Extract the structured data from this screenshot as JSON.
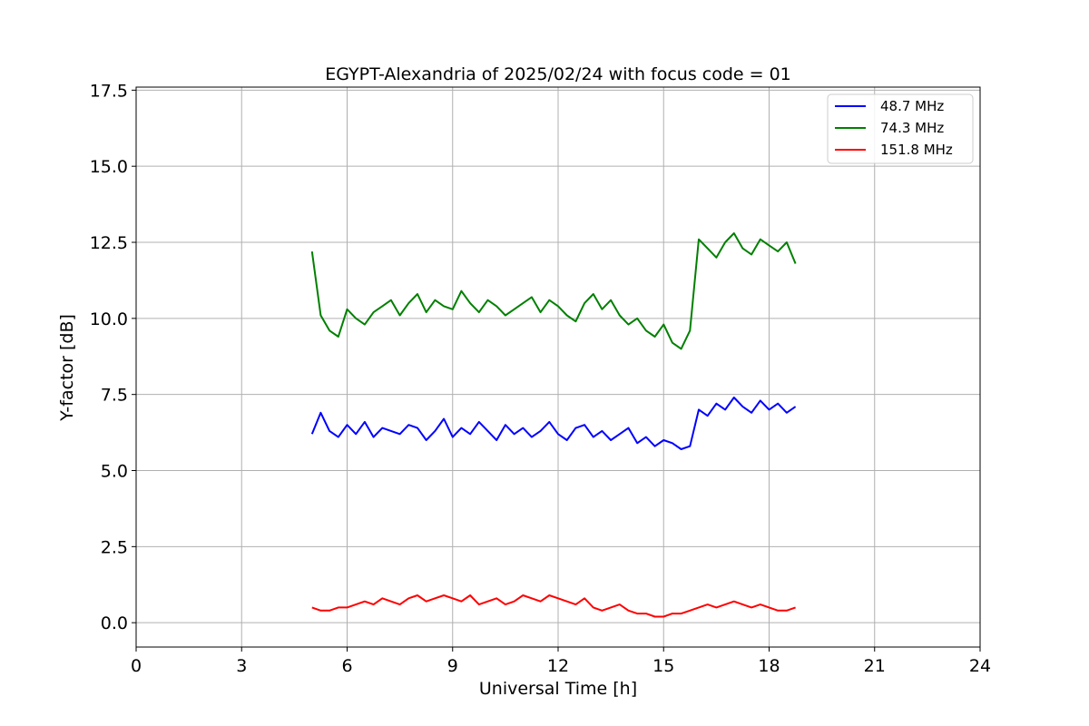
{
  "chart_data": {
    "type": "line",
    "title": "EGYPT-Alexandria of 2025/02/24 with focus code = 01",
    "xlabel": "Universal Time [h]",
    "ylabel": "Y-factor [dB]",
    "xlim": [
      0,
      24
    ],
    "ylim": [
      -0.8,
      17.6
    ],
    "xticks": [
      0,
      3,
      6,
      9,
      12,
      15,
      18,
      21,
      24
    ],
    "xtick_labels": [
      "0",
      "3",
      "6",
      "9",
      "12",
      "15",
      "18",
      "21",
      "24"
    ],
    "yticks": [
      0,
      2.5,
      5,
      7.5,
      10,
      12.5,
      15,
      17.5
    ],
    "ytick_labels": [
      "0.0",
      "2.5",
      "5.0",
      "7.5",
      "10.0",
      "12.5",
      "15.0",
      "17.5"
    ],
    "grid": true,
    "legend_position": "top-right",
    "x": [
      5.0,
      5.25,
      5.5,
      5.75,
      6.0,
      6.25,
      6.5,
      6.75,
      7.0,
      7.25,
      7.5,
      7.75,
      8.0,
      8.25,
      8.5,
      8.75,
      9.0,
      9.25,
      9.5,
      9.75,
      10.0,
      10.25,
      10.5,
      10.75,
      11.0,
      11.25,
      11.5,
      11.75,
      12.0,
      12.25,
      12.5,
      12.75,
      13.0,
      13.25,
      13.5,
      13.75,
      14.0,
      14.25,
      14.5,
      14.75,
      15.0,
      15.25,
      15.5,
      15.75,
      16.0,
      16.25,
      16.5,
      16.75,
      17.0,
      17.25,
      17.5,
      17.75,
      18.0,
      18.25,
      18.5,
      18.75
    ],
    "series": [
      {
        "name": " 48.7 MHz",
        "color": "#0000ff",
        "values": [
          6.2,
          6.9,
          6.3,
          6.1,
          6.5,
          6.2,
          6.6,
          6.1,
          6.4,
          6.3,
          6.2,
          6.5,
          6.4,
          6.0,
          6.3,
          6.7,
          6.1,
          6.4,
          6.2,
          6.6,
          6.3,
          6.0,
          6.5,
          6.2,
          6.4,
          6.1,
          6.3,
          6.6,
          6.2,
          6.0,
          6.4,
          6.5,
          6.1,
          6.3,
          6.0,
          6.2,
          6.4,
          5.9,
          6.1,
          5.8,
          6.0,
          5.9,
          5.7,
          5.8,
          7.0,
          6.8,
          7.2,
          7.0,
          7.4,
          7.1,
          6.9,
          7.3,
          7.0,
          7.2,
          6.9,
          7.1
        ]
      },
      {
        "name": " 74.3 MHz",
        "color": "#008000",
        "values": [
          12.2,
          10.1,
          9.6,
          9.4,
          10.3,
          10.0,
          9.8,
          10.2,
          10.4,
          10.6,
          10.1,
          10.5,
          10.8,
          10.2,
          10.6,
          10.4,
          10.3,
          10.9,
          10.5,
          10.2,
          10.6,
          10.4,
          10.1,
          10.3,
          10.5,
          10.7,
          10.2,
          10.6,
          10.4,
          10.1,
          9.9,
          10.5,
          10.8,
          10.3,
          10.6,
          10.1,
          9.8,
          10.0,
          9.6,
          9.4,
          9.8,
          9.2,
          9.0,
          9.6,
          12.6,
          12.3,
          12.0,
          12.5,
          12.8,
          12.3,
          12.1,
          12.6,
          12.4,
          12.2,
          12.5,
          11.8
        ]
      },
      {
        "name": "151.8 MHz",
        "color": "#ff0000",
        "values": [
          0.5,
          0.4,
          0.4,
          0.5,
          0.5,
          0.6,
          0.7,
          0.6,
          0.8,
          0.7,
          0.6,
          0.8,
          0.9,
          0.7,
          0.8,
          0.9,
          0.8,
          0.7,
          0.9,
          0.6,
          0.7,
          0.8,
          0.6,
          0.7,
          0.9,
          0.8,
          0.7,
          0.9,
          0.8,
          0.7,
          0.6,
          0.8,
          0.5,
          0.4,
          0.5,
          0.6,
          0.4,
          0.3,
          0.3,
          0.2,
          0.2,
          0.3,
          0.3,
          0.4,
          0.5,
          0.6,
          0.5,
          0.6,
          0.7,
          0.6,
          0.5,
          0.6,
          0.5,
          0.4,
          0.4,
          0.5
        ]
      }
    ]
  }
}
